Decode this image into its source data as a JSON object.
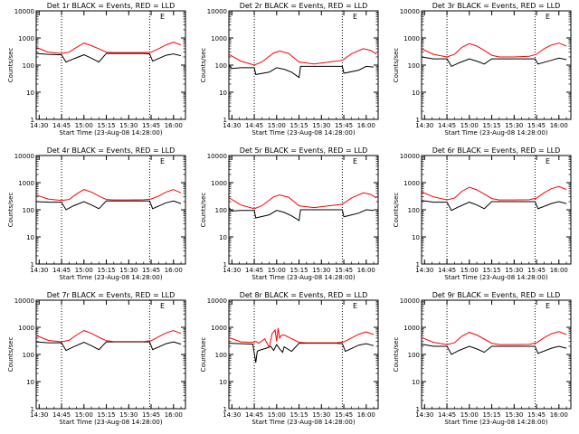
{
  "x_axis_label": "Start Time (23-Aug-08 14:28:00)",
  "y_axis_label": "Counts/sec",
  "x_tick_labels": [
    "14:30",
    "14:45",
    "15:00",
    "15:15",
    "15:30",
    "15:45",
    "16:00"
  ],
  "y_tick_labels": [
    "1",
    "10",
    "100",
    "1000",
    "10000"
  ],
  "marker_letter": "E",
  "colors": {
    "events": "#000000",
    "lld": "#ff0000",
    "dotted": "#000000"
  },
  "chart_data": [
    {
      "type": "line",
      "title": "Det 1r BLACK = Events, RED = LLD",
      "ylim": [
        1,
        10000
      ],
      "yscale": "log",
      "xlim_minutes": [
        "14:28",
        "16:08"
      ],
      "vlines": [
        "14:45",
        "15:44"
      ],
      "series": [
        {
          "name": "Events",
          "x": [
            "14:28",
            "14:36",
            "14:45",
            "14:48",
            "14:53",
            "15:00",
            "15:05",
            "15:10",
            "15:15",
            "15:20",
            "15:30",
            "15:40",
            "15:44",
            "15:46",
            "15:55",
            "16:00",
            "16:05"
          ],
          "y": [
            270,
            250,
            240,
            130,
            170,
            240,
            180,
            130,
            270,
            270,
            270,
            270,
            260,
            140,
            230,
            260,
            220
          ]
        },
        {
          "name": "LLD",
          "x": [
            "14:28",
            "14:36",
            "14:45",
            "14:50",
            "14:55",
            "15:00",
            "15:05",
            "15:10",
            "15:15",
            "15:20",
            "15:30",
            "15:40",
            "15:45",
            "15:50",
            "15:55",
            "16:00",
            "16:05"
          ],
          "y": [
            450,
            300,
            270,
            300,
            450,
            650,
            520,
            400,
            300,
            290,
            290,
            290,
            300,
            400,
            560,
            700,
            560
          ]
        }
      ]
    },
    {
      "type": "line",
      "title": "Det 2r BLACK = Events, RED = LLD",
      "ylim": [
        1,
        10000
      ],
      "yscale": "log",
      "xlim_minutes": [
        "14:28",
        "16:08"
      ],
      "vlines": [
        "14:45",
        "15:44"
      ],
      "series": [
        {
          "name": "Events",
          "x": [
            "14:28",
            "14:30",
            "14:36",
            "14:45",
            "14:46",
            "14:55",
            "15:00",
            "15:05",
            "15:10",
            "15:15",
            "15:16",
            "15:30",
            "15:44",
            "15:45",
            "15:55",
            "16:00",
            "16:05"
          ],
          "y": [
            100,
            75,
            80,
            80,
            45,
            55,
            80,
            70,
            55,
            35,
            90,
            90,
            90,
            50,
            65,
            90,
            85
          ]
        },
        {
          "name": "LLD",
          "x": [
            "14:28",
            "14:36",
            "14:45",
            "14:50",
            "14:58",
            "15:02",
            "15:08",
            "15:15",
            "15:25",
            "15:35",
            "15:44",
            "15:50",
            "15:58",
            "16:03",
            "16:07"
          ],
          "y": [
            250,
            140,
            100,
            130,
            280,
            330,
            270,
            130,
            110,
            130,
            150,
            260,
            400,
            350,
            250
          ]
        }
      ]
    },
    {
      "type": "line",
      "title": "Det 3r BLACK = Events, RED = LLD",
      "ylim": [
        1,
        10000
      ],
      "yscale": "log",
      "xlim_minutes": [
        "14:28",
        "16:08"
      ],
      "vlines": [
        "14:45",
        "15:44"
      ],
      "series": [
        {
          "name": "Events",
          "x": [
            "14:28",
            "14:36",
            "14:45",
            "14:48",
            "14:53",
            "15:00",
            "15:05",
            "15:10",
            "15:15",
            "15:20",
            "15:30",
            "15:40",
            "15:44",
            "15:46",
            "15:55",
            "16:00",
            "16:05"
          ],
          "y": [
            200,
            170,
            170,
            90,
            120,
            170,
            140,
            110,
            170,
            170,
            170,
            170,
            170,
            110,
            150,
            180,
            160
          ]
        },
        {
          "name": "LLD",
          "x": [
            "14:28",
            "14:36",
            "14:45",
            "14:50",
            "14:55",
            "15:00",
            "15:05",
            "15:10",
            "15:15",
            "15:20",
            "15:30",
            "15:40",
            "15:45",
            "15:50",
            "15:55",
            "16:00",
            "16:05"
          ],
          "y": [
            400,
            250,
            200,
            250,
            450,
            620,
            500,
            350,
            230,
            200,
            200,
            210,
            250,
            400,
            550,
            650,
            500
          ]
        }
      ]
    },
    {
      "type": "line",
      "title": "Det 4r BLACK = Events, RED = LLD",
      "ylim": [
        1,
        10000
      ],
      "yscale": "log",
      "xlim_minutes": [
        "14:28",
        "16:08"
      ],
      "vlines": [
        "14:45",
        "15:44"
      ],
      "series": [
        {
          "name": "Events",
          "x": [
            "14:28",
            "14:36",
            "14:45",
            "14:48",
            "14:53",
            "15:00",
            "15:05",
            "15:10",
            "15:15",
            "15:20",
            "15:30",
            "15:40",
            "15:44",
            "15:46",
            "15:55",
            "16:00",
            "16:05"
          ],
          "y": [
            200,
            190,
            190,
            100,
            140,
            200,
            150,
            110,
            210,
            210,
            210,
            210,
            210,
            110,
            180,
            210,
            170
          ]
        },
        {
          "name": "LLD",
          "x": [
            "14:28",
            "14:36",
            "14:45",
            "14:50",
            "14:55",
            "15:00",
            "15:05",
            "15:10",
            "15:15",
            "15:20",
            "15:30",
            "15:40",
            "15:45",
            "15:50",
            "15:55",
            "16:00",
            "16:05"
          ],
          "y": [
            350,
            250,
            220,
            240,
            380,
            560,
            450,
            320,
            240,
            230,
            230,
            235,
            250,
            320,
            450,
            560,
            420
          ]
        }
      ]
    },
    {
      "type": "line",
      "title": "Det 5r BLACK = Events, RED = LLD",
      "ylim": [
        1,
        10000
      ],
      "yscale": "log",
      "xlim_minutes": [
        "14:28",
        "16:08"
      ],
      "vlines": [
        "14:45",
        "15:44"
      ],
      "series": [
        {
          "name": "Events",
          "x": [
            "14:28",
            "14:30",
            "14:36",
            "14:45",
            "14:46",
            "14:55",
            "15:00",
            "15:05",
            "15:10",
            "15:15",
            "15:16",
            "15:30",
            "15:44",
            "15:45",
            "15:55",
            "16:00",
            "16:05"
          ],
          "y": [
            120,
            90,
            95,
            95,
            50,
            65,
            95,
            80,
            60,
            40,
            100,
            100,
            100,
            55,
            75,
            100,
            95
          ]
        },
        {
          "name": "LLD",
          "x": [
            "14:28",
            "14:36",
            "14:45",
            "14:50",
            "14:58",
            "15:02",
            "15:08",
            "15:15",
            "15:25",
            "15:35",
            "15:44",
            "15:50",
            "15:58",
            "16:03",
            "16:07"
          ],
          "y": [
            280,
            150,
            110,
            140,
            300,
            350,
            290,
            140,
            120,
            140,
            160,
            270,
            420,
            370,
            270
          ]
        }
      ]
    },
    {
      "type": "line",
      "title": "Det 6r BLACK = Events, RED = LLD",
      "ylim": [
        1,
        10000
      ],
      "yscale": "log",
      "xlim_minutes": [
        "14:28",
        "16:08"
      ],
      "vlines": [
        "14:45",
        "15:44"
      ],
      "series": [
        {
          "name": "Events",
          "x": [
            "14:28",
            "14:36",
            "14:45",
            "14:48",
            "14:53",
            "15:00",
            "15:05",
            "15:10",
            "15:15",
            "15:20",
            "15:30",
            "15:40",
            "15:44",
            "15:46",
            "15:55",
            "16:00",
            "16:05"
          ],
          "y": [
            220,
            190,
            190,
            95,
            130,
            190,
            150,
            110,
            200,
            200,
            200,
            200,
            200,
            110,
            170,
            200,
            170
          ]
        },
        {
          "name": "LLD",
          "x": [
            "14:28",
            "14:36",
            "14:45",
            "14:50",
            "14:55",
            "15:00",
            "15:05",
            "15:10",
            "15:15",
            "15:20",
            "15:30",
            "15:40",
            "15:45",
            "15:50",
            "15:55",
            "16:00",
            "16:05"
          ],
          "y": [
            450,
            300,
            230,
            270,
            480,
            680,
            540,
            380,
            260,
            230,
            230,
            235,
            270,
            420,
            600,
            720,
            560
          ]
        }
      ]
    },
    {
      "type": "line",
      "title": "Det 7r BLACK = Events, RED = LLD",
      "ylim": [
        1,
        10000
      ],
      "yscale": "log",
      "xlim_minutes": [
        "14:28",
        "16:08"
      ],
      "vlines": [
        "14:45",
        "15:44"
      ],
      "series": [
        {
          "name": "Events",
          "x": [
            "14:28",
            "14:36",
            "14:45",
            "14:48",
            "14:53",
            "15:00",
            "15:05",
            "15:10",
            "15:15",
            "15:20",
            "15:30",
            "15:40",
            "15:44",
            "15:46",
            "15:55",
            "16:00",
            "16:05"
          ],
          "y": [
            290,
            270,
            270,
            140,
            190,
            280,
            210,
            150,
            290,
            290,
            290,
            290,
            290,
            150,
            250,
            290,
            240
          ]
        },
        {
          "name": "LLD",
          "x": [
            "14:28",
            "14:36",
            "14:45",
            "14:50",
            "14:55",
            "15:00",
            "15:05",
            "15:10",
            "15:15",
            "15:20",
            "15:30",
            "15:40",
            "15:45",
            "15:50",
            "15:55",
            "16:00",
            "16:05"
          ],
          "y": [
            500,
            330,
            290,
            330,
            520,
            760,
            600,
            430,
            320,
            300,
            300,
            300,
            320,
            450,
            620,
            760,
            600
          ]
        }
      ]
    },
    {
      "type": "line",
      "title": "Det 8r BLACK = Events, RED = LLD",
      "ylim": [
        1,
        10000
      ],
      "yscale": "log",
      "xlim_minutes": [
        "14:28",
        "16:08"
      ],
      "vlines": [
        "14:45",
        "15:44"
      ],
      "series": [
        {
          "name": "Events",
          "x": [
            "14:28",
            "14:36",
            "14:44",
            "14:45",
            "14:46",
            "14:47",
            "14:48",
            "14:53",
            "14:56",
            "14:58",
            "15:00",
            "15:02",
            "15:04",
            "15:05",
            "15:10",
            "15:15",
            "15:20",
            "15:30",
            "15:40",
            "15:44",
            "15:46",
            "15:55",
            "16:00",
            "16:05"
          ],
          "y": [
            260,
            250,
            240,
            110,
            50,
            130,
            140,
            170,
            200,
            140,
            230,
            160,
            120,
            190,
            130,
            260,
            260,
            260,
            260,
            250,
            130,
            220,
            250,
            210
          ]
        },
        {
          "name": "LLD",
          "x": [
            "14:28",
            "14:36",
            "14:44",
            "14:46",
            "14:48",
            "14:52",
            "14:55",
            "14:57",
            "14:59",
            "15:00",
            "15:01",
            "15:02",
            "15:03",
            "15:05",
            "15:10",
            "15:15",
            "15:20",
            "15:30",
            "15:40",
            "15:45",
            "15:50",
            "15:55",
            "16:00",
            "16:05"
          ],
          "y": [
            420,
            290,
            280,
            300,
            260,
            380,
            180,
            600,
            800,
            300,
            950,
            400,
            500,
            520,
            380,
            280,
            270,
            270,
            270,
            290,
            400,
            560,
            680,
            540
          ]
        }
      ]
    },
    {
      "type": "line",
      "title": "Det 9r BLACK = Events, RED = LLD",
      "ylim": [
        1,
        10000
      ],
      "yscale": "log",
      "xlim_minutes": [
        "14:28",
        "16:08"
      ],
      "vlines": [
        "14:45",
        "15:44"
      ],
      "series": [
        {
          "name": "Events",
          "x": [
            "14:28",
            "14:36",
            "14:45",
            "14:48",
            "14:53",
            "15:00",
            "15:05",
            "15:10",
            "15:15",
            "15:20",
            "15:30",
            "15:40",
            "15:44",
            "15:46",
            "15:55",
            "16:00",
            "16:05"
          ],
          "y": [
            240,
            200,
            200,
            100,
            140,
            200,
            160,
            120,
            200,
            200,
            200,
            200,
            200,
            110,
            170,
            200,
            170
          ]
        },
        {
          "name": "LLD",
          "x": [
            "14:28",
            "14:36",
            "14:45",
            "14:50",
            "14:55",
            "15:00",
            "15:05",
            "15:10",
            "15:15",
            "15:20",
            "15:30",
            "15:40",
            "15:45",
            "15:50",
            "15:55",
            "16:00",
            "16:05"
          ],
          "y": [
            420,
            280,
            230,
            270,
            470,
            650,
            520,
            370,
            260,
            230,
            230,
            235,
            270,
            410,
            580,
            690,
            540
          ]
        }
      ]
    }
  ]
}
